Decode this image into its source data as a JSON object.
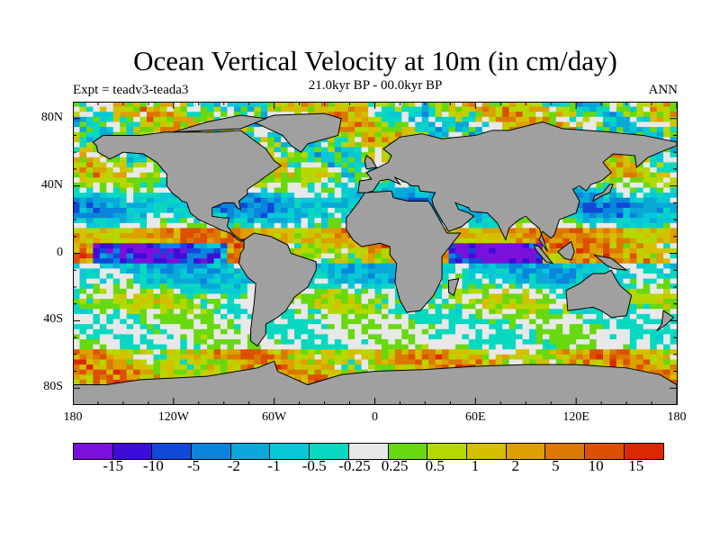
{
  "title": "Ocean Vertical Velocity at 10m (in cm/day)",
  "subtitle": "21.0kyr BP - 00.0kyr BP",
  "experiment_label": "Expt = teadv3-teada3",
  "season_label": "ANN",
  "land_color": "#a0a0a0",
  "map": {
    "lat_ticks": [
      "80N",
      "40N",
      "0",
      "40S",
      "80S"
    ],
    "lat_values": [
      80,
      40,
      0,
      -40,
      -80
    ],
    "lon_ticks": [
      "180",
      "120W",
      "60W",
      "0",
      "60E",
      "120E",
      "180"
    ],
    "lon_values": [
      -180,
      -120,
      -60,
      0,
      60,
      120,
      180
    ]
  },
  "colorbar": {
    "labels": [
      "-15",
      "-10",
      "-5",
      "-2",
      "-1",
      "-0.5",
      "-0.25",
      "0.25",
      "0.5",
      "1",
      "2",
      "5",
      "10",
      "15"
    ],
    "colors": [
      "#7a10dc",
      "#3e0cd8",
      "#1248d8",
      "#0a84dc",
      "#08a8d8",
      "#08c8d8",
      "#08d8c0",
      "#e8e8e8",
      "#68d810",
      "#b4d800",
      "#d4c000",
      "#dca000",
      "#dc7800",
      "#dc5000",
      "#dc2800"
    ]
  }
}
